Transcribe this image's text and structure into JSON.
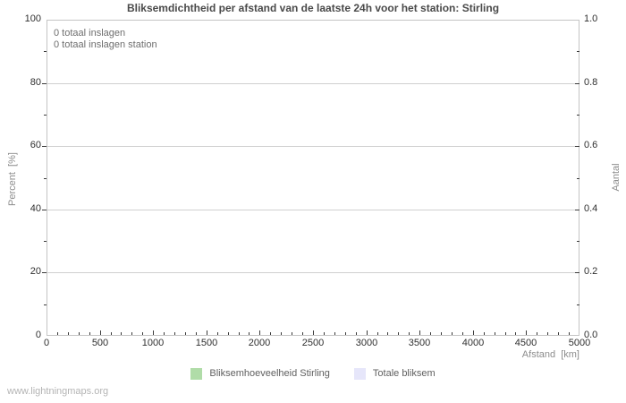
{
  "page": {
    "watermark": "www.lightningmaps.org"
  },
  "colors": {
    "title": "#4a4a4a",
    "tick_label": "#2f2f2f",
    "tick_mark": "#3a3a3a",
    "axis_label": "#8c8c8c",
    "grid": "#d0d0d0",
    "plot_border": "#c4c4c4",
    "annotation": "#6e6e6e",
    "legend_label": "#5f5f5f",
    "watermark": "#b4b4b4",
    "background": "#ffffff"
  },
  "chart_data": {
    "type": "bar",
    "title": "Bliksemdichtheid per afstand van de laatste 24h voor het station: Stirling",
    "xlabel": "Afstand  [km]",
    "ylabel_left": "Percent  [%]",
    "ylabel_right": "Aantal",
    "xlim": [
      0,
      5000
    ],
    "ylim_left": [
      0,
      100
    ],
    "ylim_right": [
      0.0,
      1.0
    ],
    "x_ticks": [
      0,
      500,
      1000,
      1500,
      2000,
      2500,
      3000,
      3500,
      4000,
      4500,
      5000
    ],
    "x_minor_step": 100,
    "y_ticks_left": [
      0,
      20,
      40,
      60,
      80,
      100
    ],
    "y_minor_step_left": 10,
    "y_ticks_right": [
      "0.0",
      "0.2",
      "0.4",
      "0.6",
      "0.8",
      "1.0"
    ],
    "grid": "horizontal-major-only",
    "legend_position": "bottom-center",
    "annotations": [
      "0 totaal inslagen",
      "0 totaal inslagen station"
    ],
    "series": [
      {
        "name": "Bliksemhoeveelheid Stirling",
        "color": "#b0dca8",
        "values": []
      },
      {
        "name": "Totale bliksem",
        "color": "#e6e6fa",
        "values": []
      }
    ]
  }
}
